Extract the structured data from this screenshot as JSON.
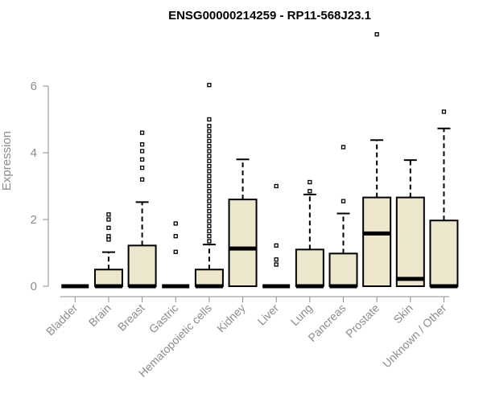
{
  "chart_data": {
    "type": "box",
    "title": "ENSG00000214259 - RP11-568J23.1",
    "xlabel": "",
    "ylabel": "Expression",
    "ylim": [
      0,
      7.6
    ],
    "yticks": [
      0,
      2,
      4,
      6
    ],
    "grid": false,
    "box_fill": "#ece6cc",
    "categories": [
      "Bladder",
      "Brain",
      "Breast",
      "Gastric",
      "Hematopoietic cells",
      "Kidney",
      "Liver",
      "Lung",
      "Pancreas",
      "Prostate",
      "Skin",
      "Unknown / Other"
    ],
    "boxes": [
      {
        "q1": 0,
        "median": 0,
        "q3": 0,
        "whisker_low": 0,
        "whisker_high": 0,
        "outliers": []
      },
      {
        "q1": 0,
        "median": 0,
        "q3": 0.5,
        "whisker_low": 0,
        "whisker_high": 1.02,
        "outliers": [
          1.4,
          1.5,
          1.75,
          2.0,
          2.15
        ]
      },
      {
        "q1": 0,
        "median": 0,
        "q3": 1.22,
        "whisker_low": 0,
        "whisker_high": 2.52,
        "outliers": [
          3.2,
          3.55,
          3.8,
          4.05,
          4.25,
          4.6
        ]
      },
      {
        "q1": 0,
        "median": 0,
        "q3": 0,
        "whisker_low": 0,
        "whisker_high": 0,
        "outliers": [
          1.03,
          1.5,
          1.88
        ]
      },
      {
        "q1": 0,
        "median": 0,
        "q3": 0.5,
        "whisker_low": 0,
        "whisker_high": 1.25,
        "outliers": [
          1.35,
          1.5,
          1.65,
          1.8,
          1.95,
          2.1,
          2.25,
          2.4,
          2.55,
          2.7,
          2.85,
          3.0,
          3.15,
          3.3,
          3.45,
          3.6,
          3.75,
          3.9,
          4.05,
          4.2,
          4.35,
          4.5,
          4.65,
          4.8,
          5.0,
          6.03
        ]
      },
      {
        "q1": 0,
        "median": 1.13,
        "q3": 2.6,
        "whisker_low": 0,
        "whisker_high": 3.8,
        "outliers": []
      },
      {
        "q1": 0,
        "median": 0,
        "q3": 0,
        "whisker_low": 0,
        "whisker_high": 0,
        "outliers": [
          0.65,
          0.8,
          1.22,
          3.0
        ]
      },
      {
        "q1": 0,
        "median": 0,
        "q3": 1.1,
        "whisker_low": 0,
        "whisker_high": 2.75,
        "outliers": [
          2.85,
          3.12
        ]
      },
      {
        "q1": 0,
        "median": 0,
        "q3": 0.98,
        "whisker_low": 0,
        "whisker_high": 2.18,
        "outliers": [
          2.55,
          4.17
        ]
      },
      {
        "q1": 0,
        "median": 1.58,
        "q3": 2.66,
        "whisker_low": 0,
        "whisker_high": 4.38,
        "outliers": [
          7.55
        ]
      },
      {
        "q1": 0,
        "median": 0.22,
        "q3": 2.66,
        "whisker_low": 0,
        "whisker_high": 3.78,
        "outliers": []
      },
      {
        "q1": 0,
        "median": 0,
        "q3": 1.97,
        "whisker_low": 0,
        "whisker_high": 4.73,
        "outliers": [
          5.23
        ]
      }
    ]
  }
}
